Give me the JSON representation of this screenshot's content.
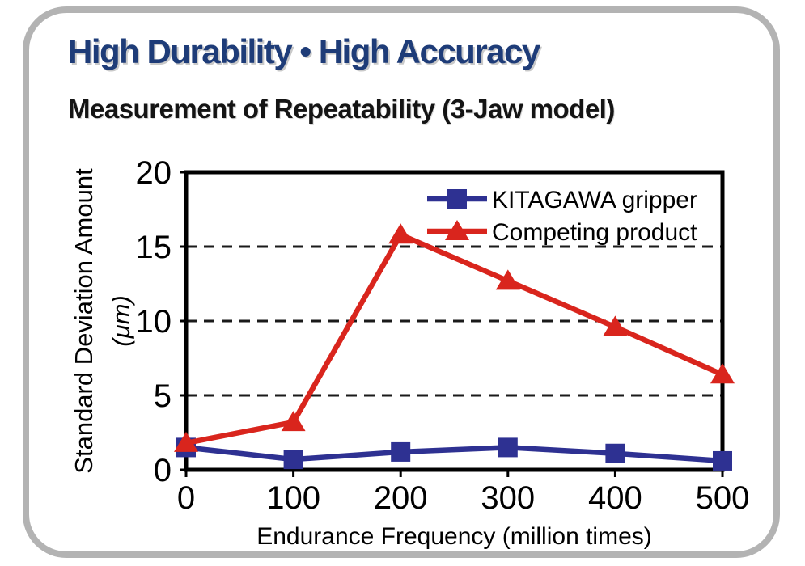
{
  "header": {
    "title": "High Durability • High Accuracy"
  },
  "style": {
    "title_color": "#1E3C78",
    "card_border_color": "#B3B3B3",
    "frame_color": "#000000",
    "grid_color": "#1A1A1A"
  },
  "chart_data": {
    "type": "line",
    "title": "Measurement of Repeatability (3-Jaw model)",
    "x": [
      0,
      100,
      200,
      300,
      400,
      500
    ],
    "xlabel": "Endurance Frequency (million times)",
    "ylabel": "Standard Deviation Amount",
    "ylabel_unit": "(μm)",
    "ylim": [
      0,
      20
    ],
    "yticks": [
      0,
      5,
      10,
      15,
      20
    ],
    "gridlines": [
      5,
      10,
      15
    ],
    "grid_style": "dashed",
    "legend_position": "top-right-inside",
    "series": [
      {
        "name": "KITAGAWA gripper",
        "color": "#2E3192",
        "marker": "square",
        "values": [
          1.5,
          0.7,
          1.2,
          1.5,
          1.1,
          0.6
        ]
      },
      {
        "name": "Competing product",
        "color": "#D9251D",
        "marker": "triangle",
        "values": [
          1.8,
          3.2,
          15.8,
          12.7,
          9.6,
          6.4
        ]
      }
    ]
  }
}
